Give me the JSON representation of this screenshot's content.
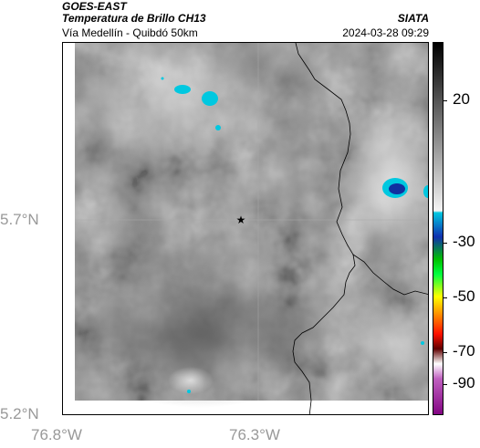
{
  "header": {
    "satellite": "GOES-EAST",
    "product": "Temperatura de Brillo CH13",
    "route": "Vía Medellín - Quibdó 50km",
    "agency": "SIATA",
    "timestamp": "2024-03-28 09:29"
  },
  "map": {
    "lat_ticks": [
      "5.7°N",
      "5.2°N"
    ],
    "lon_ticks": [
      "76.8°W",
      "76.3°W"
    ],
    "marker": "star-marker",
    "colors": {
      "cold_cloud": "#00c8e0",
      "core": "#1030a0",
      "border": "#000000"
    }
  },
  "colorbar": {
    "labels": [
      "20",
      "-30",
      "-50",
      "-70",
      "-90"
    ],
    "colors": [
      "#000000",
      "#ffffff",
      "#00d0e0",
      "#1030b0",
      "#00ff00",
      "#ffff00",
      "#ff3000",
      "#800000",
      "#ff80ff",
      "#a000a0"
    ]
  }
}
